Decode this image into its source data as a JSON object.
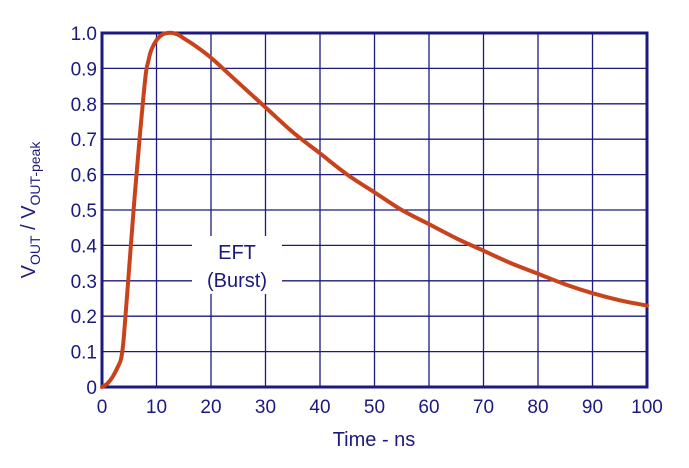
{
  "chart_data": {
    "type": "line",
    "xlabel": "Time - ns",
    "ylabel_main": "V",
    "ylabel_sub1": "OUT",
    "ylabel_sep": " / V",
    "ylabel_sub2": "OUT-peak",
    "xlim": [
      0,
      100
    ],
    "ylim": [
      0,
      1.0
    ],
    "x_ticks": [
      "0",
      "10",
      "20",
      "30",
      "40",
      "50",
      "60",
      "70",
      "80",
      "90",
      "100"
    ],
    "y_ticks": [
      "0",
      "0.1",
      "0.2",
      "0.3",
      "0.4",
      "0.5",
      "0.6",
      "0.7",
      "0.8",
      "0.9",
      "1.0"
    ],
    "grid": true,
    "annotation": {
      "line1": "EFT",
      "line2": "(Burst)"
    },
    "series": [
      {
        "color": "#c8431c",
        "x": [
          0,
          1,
          2,
          3,
          3.5,
          4,
          5,
          6,
          7,
          8,
          8.5,
          9,
          10,
          11,
          12,
          13,
          14,
          15,
          17,
          20,
          25,
          30,
          35,
          40,
          45,
          50,
          55,
          60,
          65,
          70,
          75,
          80,
          85,
          90,
          95,
          100
        ],
        "y": [
          0,
          0.01,
          0.03,
          0.06,
          0.08,
          0.14,
          0.34,
          0.54,
          0.72,
          0.88,
          0.92,
          0.95,
          0.98,
          0.995,
          1.0,
          1.0,
          0.995,
          0.985,
          0.965,
          0.93,
          0.86,
          0.79,
          0.72,
          0.66,
          0.6,
          0.55,
          0.5,
          0.46,
          0.42,
          0.385,
          0.35,
          0.32,
          0.29,
          0.265,
          0.245,
          0.23
        ]
      }
    ]
  },
  "colors": {
    "axis": "#1c1a7e",
    "grid": "#1c1a7e",
    "curve": "#c8431c"
  }
}
